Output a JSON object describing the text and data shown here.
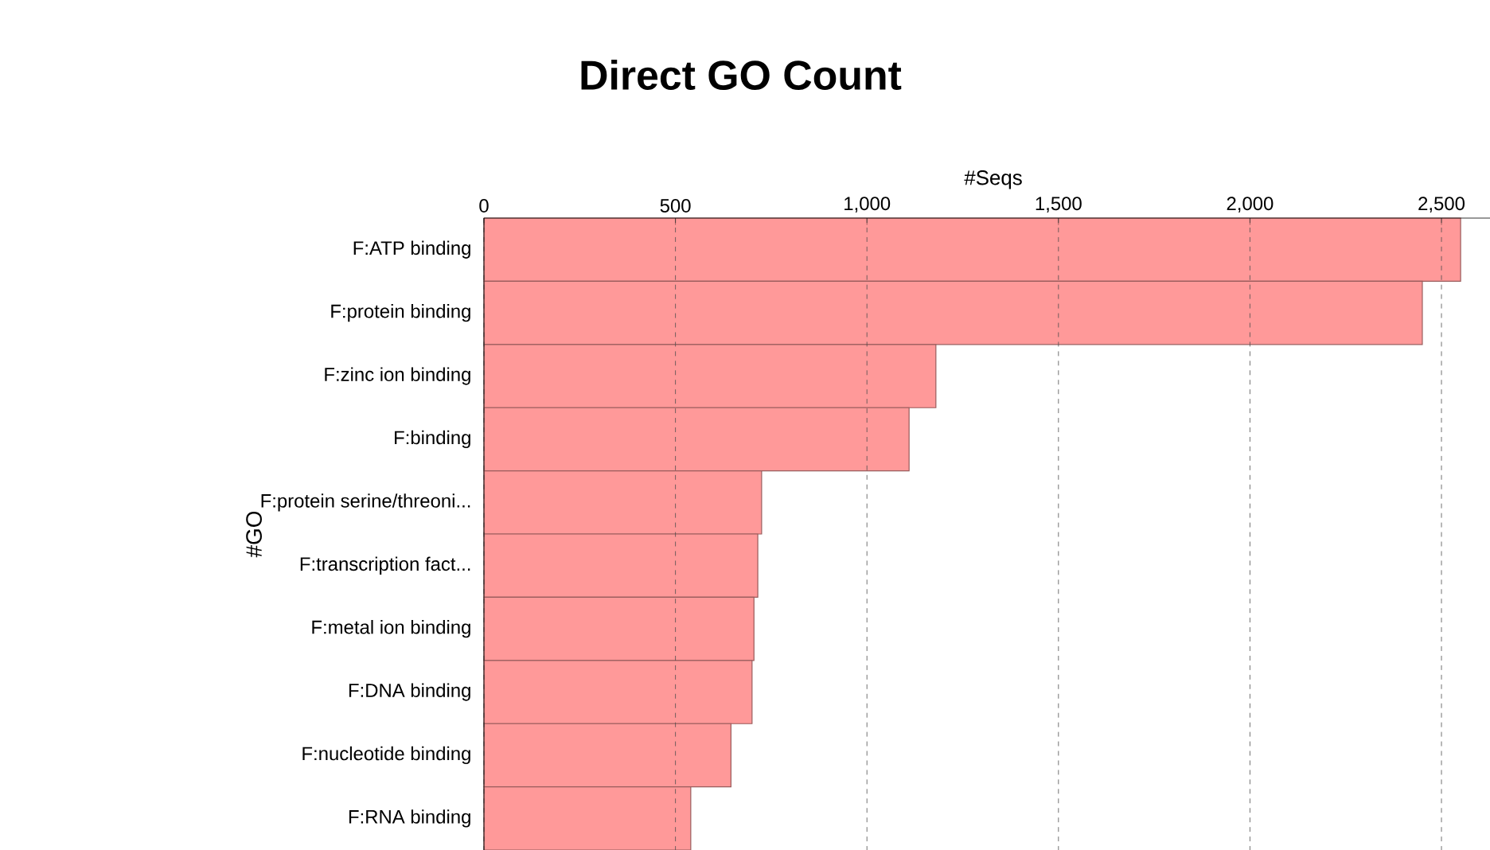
{
  "chart_data": {
    "type": "bar",
    "orientation": "horizontal",
    "title": "Direct GO Count",
    "xlabel": "#Seqs",
    "ylabel": "#GO",
    "categories": [
      "F:ATP binding",
      "F:protein binding",
      "F:zinc ion binding",
      "F:binding",
      "F:protein serine/threoni...",
      "F:transcription fact...",
      "F:metal ion binding",
      "F:DNA binding",
      "F:nucleotide binding",
      "F:RNA binding"
    ],
    "values": [
      2550,
      2450,
      1180,
      1110,
      725,
      715,
      705,
      700,
      645,
      540
    ],
    "color": "#ff9999",
    "xlim": [
      0,
      2660
    ],
    "xticks": [
      0,
      500,
      {
        "value": 1000,
        "label": "1,000"
      },
      {
        "value": 1500,
        "label": "1,500"
      },
      {
        "value": 2000,
        "label": "2,000"
      },
      {
        "value": 2500,
        "label": "2,500"
      }
    ],
    "grid": "x"
  }
}
